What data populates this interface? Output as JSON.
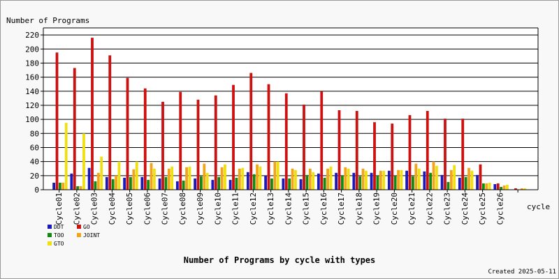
{
  "chart_data": {
    "type": "bar",
    "title": "Number of Programs by cycle with types",
    "ylabel": "Number of Programs",
    "xlabel": "cycle",
    "footer": "Created 2025-05-11",
    "ylim": [
      0,
      230
    ],
    "yticks": [
      0,
      20,
      40,
      60,
      80,
      100,
      120,
      140,
      160,
      180,
      200,
      220
    ],
    "grid": true,
    "legend_position": "bottom-left",
    "categories": [
      "Cycle01",
      "Cycle02",
      "Cycle03",
      "Cycle04",
      "Cycle05",
      "Cycle06",
      "Cycle07",
      "Cycle08",
      "Cycle09",
      "Cycle10",
      "Cycle11",
      "Cycle12",
      "Cycle13",
      "Cycle14",
      "Cycle15",
      "Cycle16",
      "Cycle17",
      "Cycle18",
      "Cycle19",
      "Cycle20",
      "Cycle21",
      "Cycle22",
      "Cycle23",
      "Cycle24",
      "Cycle25",
      "Cycle26",
      ""
    ],
    "series": [
      {
        "name": "DDT",
        "color": "#1a1ab8",
        "values": [
          10,
          23,
          31,
          18,
          17,
          18,
          16,
          12,
          16,
          14,
          14,
          25,
          20,
          16,
          15,
          23,
          24,
          24,
          24,
          27,
          27,
          26,
          21,
          17,
          21,
          8,
          0
        ]
      },
      {
        "name": "GO",
        "color": "#cc1111",
        "values": [
          195,
          173,
          216,
          191,
          159,
          144,
          125,
          139,
          128,
          134,
          149,
          166,
          150,
          137,
          121,
          140,
          113,
          112,
          96,
          94,
          106,
          112,
          101,
          101,
          36,
          9,
          2
        ]
      },
      {
        "name": "TOO",
        "color": "#128a12",
        "values": [
          10,
          5,
          12,
          15,
          18,
          14,
          18,
          13,
          19,
          18,
          17,
          22,
          16,
          16,
          21,
          17,
          20,
          19,
          20,
          20,
          19,
          24,
          11,
          18,
          9,
          4,
          0
        ]
      },
      {
        "name": "JOINT",
        "color": "#f2a51a",
        "values": [
          10,
          5,
          24,
          20,
          29,
          38,
          30,
          32,
          37,
          32,
          30,
          36,
          40,
          30,
          30,
          30,
          32,
          30,
          27,
          28,
          37,
          40,
          28,
          31,
          9,
          6,
          2
        ]
      },
      {
        "name": "GTO",
        "color": "#f0e010",
        "values": [
          95,
          80,
          47,
          40,
          40,
          30,
          33,
          33,
          24,
          36,
          31,
          33,
          40,
          28,
          25,
          33,
          30,
          27,
          27,
          28,
          30,
          34,
          35,
          27,
          10,
          7,
          2
        ]
      }
    ]
  }
}
